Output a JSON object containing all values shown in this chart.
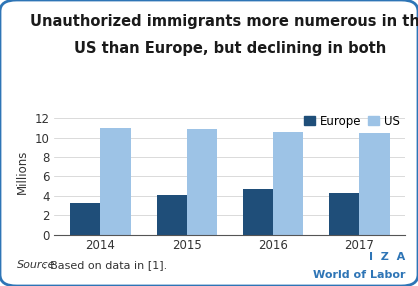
{
  "title_line1": "Unauthorized immigrants more numerous in the",
  "title_line2": "US than Europe, but declining in both",
  "years": [
    "2014",
    "2015",
    "2016",
    "2017"
  ],
  "europe_values": [
    3.3,
    4.1,
    4.7,
    4.3
  ],
  "us_values": [
    11.0,
    10.9,
    10.6,
    10.5
  ],
  "europe_color": "#1f4e79",
  "us_color": "#9dc3e6",
  "ylabel": "Millions",
  "ylim": [
    0,
    13
  ],
  "yticks": [
    0,
    2,
    4,
    6,
    8,
    10,
    12
  ],
  "legend_labels": [
    "Europe",
    "US"
  ],
  "source_italic": "Source",
  "source_rest": ": Based on data in [1].",
  "iza_line1": "I  Z  A",
  "iza_line2": "World of Labor",
  "bar_width": 0.35,
  "background_color": "#ffffff",
  "border_color": "#2e75b6",
  "title_fontsize": 10.5,
  "axis_fontsize": 8.5,
  "legend_fontsize": 8.5,
  "source_fontsize": 8,
  "iza_fontsize": 8
}
